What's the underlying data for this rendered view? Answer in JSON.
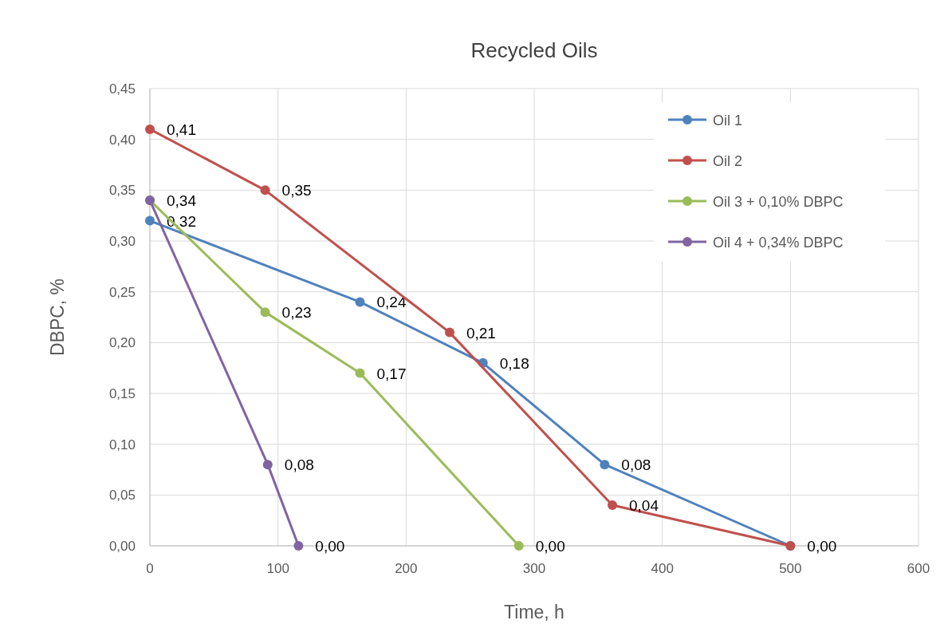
{
  "chart_data": {
    "type": "line",
    "title": "Recycled Oils",
    "xlabel": "Time, h",
    "ylabel": "DBPC, %",
    "xlim": [
      0,
      600
    ],
    "xticks": [
      0,
      100,
      200,
      300,
      400,
      500,
      600
    ],
    "ylim": [
      0,
      0.45
    ],
    "yticks": [
      {
        "value": 0,
        "label": "0,00"
      },
      {
        "value": 0.05,
        "label": "0,05"
      },
      {
        "value": 0.1,
        "label": "0,10"
      },
      {
        "value": 0.15,
        "label": "0,15"
      },
      {
        "value": 0.2,
        "label": "0,20"
      },
      {
        "value": 0.25,
        "label": "0,25"
      },
      {
        "value": 0.3,
        "label": "0,30"
      },
      {
        "value": 0.35,
        "label": "0,35"
      },
      {
        "value": 0.4,
        "label": "0,40"
      },
      {
        "value": 0.45,
        "label": "0,45"
      }
    ],
    "grid": true,
    "legend": "top right",
    "marker": "circle",
    "line_style": "solid",
    "series": [
      {
        "name": "Oil 1",
        "color": "#4f81bd",
        "x": [
          0,
          164,
          260,
          355,
          500
        ],
        "values": [
          0.32,
          0.24,
          0.18,
          0.08,
          0
        ],
        "value_labels": [
          "0,32",
          "0,24",
          "0,18",
          "0,08",
          "0,00"
        ]
      },
      {
        "name": "Oil 2",
        "color": "#c0504d",
        "x": [
          0,
          90,
          234,
          361,
          500
        ],
        "values": [
          0.41,
          0.35,
          0.21,
          0.04,
          0
        ],
        "value_labels": [
          "0,41",
          "0,35",
          "0,21",
          "0,04",
          null
        ]
      },
      {
        "name": "Oil 3 + 0,10% DBPC",
        "color": "#9bbb59",
        "x": [
          0,
          90,
          164,
          288
        ],
        "values": [
          0.34,
          0.23,
          0.17,
          0
        ],
        "value_labels": [
          "0,34",
          "0,23",
          "0,17",
          "0,00"
        ]
      },
      {
        "name": "Oil 4 + 0,34% DBPC",
        "color": "#8064a2",
        "x": [
          0,
          92,
          116
        ],
        "values": [
          0.34,
          0.08,
          0
        ],
        "value_labels": [
          null,
          "0,08",
          "0,00"
        ]
      }
    ]
  }
}
